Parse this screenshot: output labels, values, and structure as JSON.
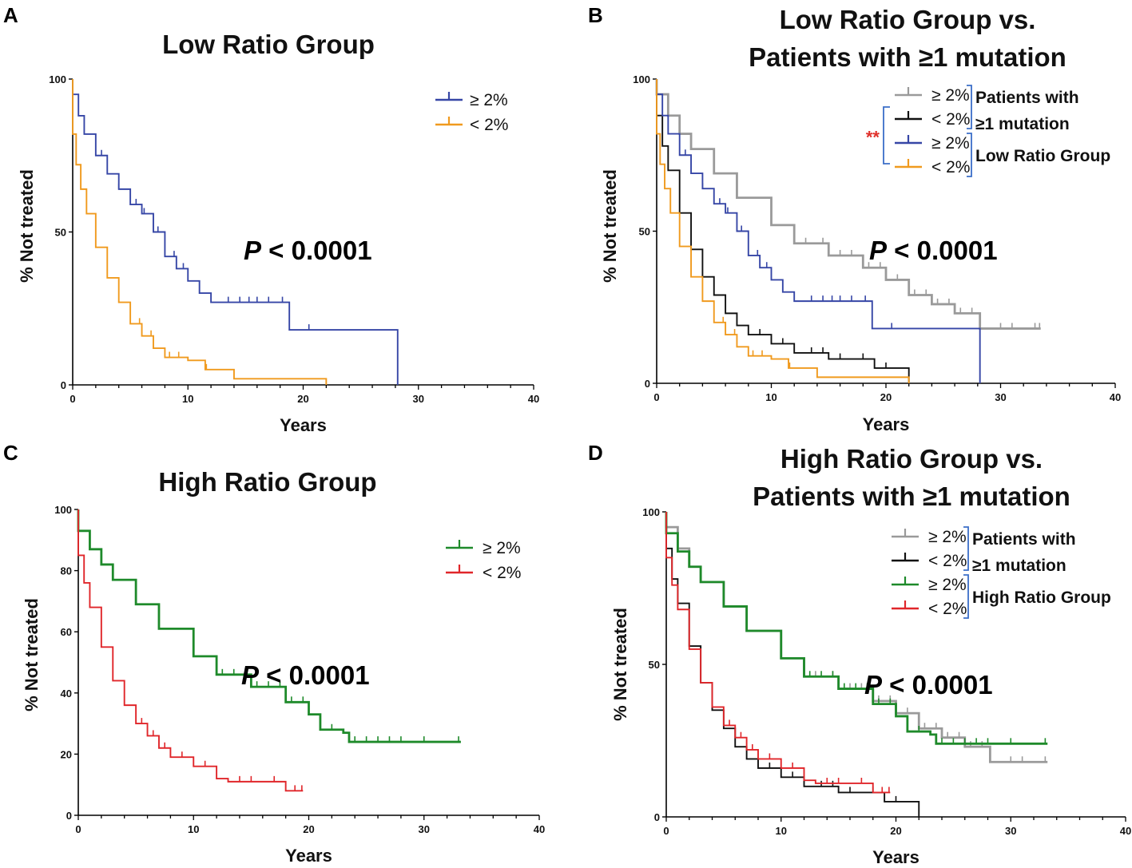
{
  "colors": {
    "blue": "#3646a6",
    "orange": "#f09a1e",
    "gray": "#9a9a9a",
    "black": "#111111",
    "green": "#1e8a2a",
    "red": "#e0262a",
    "bracket": "#3b6ec8",
    "star": "#e0302a"
  },
  "chart_data": [
    {
      "panel": "A",
      "type": "line",
      "subtype": "kaplan-meier",
      "title": "Low Ratio Group",
      "xlabel": "Years",
      "ylabel": "% Not treated",
      "xlim": [
        0,
        40
      ],
      "ylim": [
        0,
        100
      ],
      "xticks": [
        0,
        10,
        20,
        30,
        40
      ],
      "yticks": [
        0,
        50,
        100
      ],
      "pvalue_prefix": "P",
      "pvalue_rest": " < 0.0001",
      "legend": [
        {
          "label": "≥ 2%",
          "color": "blue"
        },
        {
          "label": "< 2%",
          "color": "orange"
        }
      ],
      "brackets": [],
      "series": [
        {
          "name": "≥ 2%",
          "color": "blue",
          "x": [
            0,
            0.5,
            1,
            2,
            3,
            4,
            5,
            6,
            7,
            8,
            9,
            10,
            11,
            12,
            15,
            18.8,
            20,
            28.2
          ],
          "y": [
            95,
            88,
            82,
            75,
            69,
            64,
            59,
            56,
            50,
            42,
            38,
            34,
            30,
            27,
            27,
            18,
            18,
            0
          ],
          "censor_x": [
            2.5,
            4,
            5.5,
            6.2,
            7.4,
            8.8,
            9.6,
            13.5,
            14.5,
            15.3,
            16,
            17,
            18.2,
            20.5
          ]
        },
        {
          "name": "< 2%",
          "color": "orange",
          "x": [
            0,
            0.3,
            0.7,
            1.2,
            2,
            3,
            4,
            5,
            6,
            7,
            8,
            10,
            11.5,
            14,
            22
          ],
          "y": [
            82,
            72,
            64,
            56,
            45,
            35,
            27,
            20,
            16,
            12,
            9,
            8,
            5,
            2,
            0
          ],
          "censor_x": [
            5.8,
            6.8,
            8.4,
            9.2,
            11.6
          ]
        }
      ]
    },
    {
      "panel": "B",
      "type": "line",
      "subtype": "kaplan-meier",
      "title": "Low Ratio Group vs.",
      "title2": "Patients with ≥1 mutation",
      "xlabel": "Years",
      "ylabel": "% Not treated",
      "xlim": [
        0,
        40
      ],
      "ylim": [
        0,
        100
      ],
      "xticks": [
        0,
        10,
        20,
        30,
        40
      ],
      "yticks": [
        0,
        50,
        100
      ],
      "pvalue_prefix": "P",
      "pvalue_rest": " < 0.0001",
      "legend": [
        {
          "label": "≥ 2%",
          "color": "gray"
        },
        {
          "label": "< 2%",
          "color": "black"
        },
        {
          "label": "≥ 2%",
          "color": "blue"
        },
        {
          "label": "< 2%",
          "color": "orange"
        }
      ],
      "brackets": [
        {
          "label": "Patients with",
          "label2": "≥1 mutation"
        },
        {
          "label": "Low Ratio Group"
        }
      ],
      "significance": "**",
      "series": [
        {
          "name": "≥ 2%",
          "color": "gray",
          "x": [
            0,
            1,
            2,
            3,
            5,
            7,
            10,
            12,
            15,
            18,
            20,
            22,
            24,
            26,
            28,
            28.2,
            33.5
          ],
          "y": [
            95,
            88,
            82,
            77,
            69,
            61,
            52,
            46,
            42,
            38,
            34,
            29,
            26,
            23,
            23,
            18,
            18
          ],
          "censor_x": [
            13,
            14.5,
            16,
            17,
            18.5,
            19.5,
            21,
            22.5,
            23.5,
            24.5,
            25.5,
            26.5,
            27.5,
            30,
            31,
            33,
            33.4
          ]
        },
        {
          "name": "< 2%",
          "color": "black",
          "x": [
            0,
            0.5,
            1,
            2,
            3,
            4,
            5,
            6,
            7,
            8,
            10,
            12,
            15,
            19,
            22
          ],
          "y": [
            88,
            78,
            70,
            56,
            44,
            35,
            29,
            23,
            19,
            16,
            13,
            10,
            8,
            5,
            0
          ],
          "censor_x": [
            9,
            11,
            13.5,
            14.5,
            16,
            18,
            20
          ]
        },
        {
          "name": "≥ 2%",
          "color": "blue",
          "x": [
            0,
            0.5,
            1,
            2,
            3,
            4,
            5,
            6,
            7,
            8,
            9,
            10,
            11,
            12,
            15,
            18.8,
            20,
            28.2
          ],
          "y": [
            95,
            88,
            82,
            75,
            69,
            64,
            59,
            56,
            50,
            42,
            38,
            34,
            30,
            27,
            27,
            18,
            18,
            0
          ],
          "censor_x": [
            2.5,
            4,
            5.5,
            6.2,
            7.4,
            8.8,
            9.6,
            13.5,
            14.5,
            15.3,
            16,
            17,
            18.2,
            20.5
          ]
        },
        {
          "name": "< 2%",
          "color": "orange",
          "x": [
            0,
            0.3,
            0.7,
            1.2,
            2,
            3,
            4,
            5,
            6,
            7,
            8,
            10,
            11.5,
            14,
            22
          ],
          "y": [
            82,
            72,
            64,
            56,
            45,
            35,
            27,
            20,
            16,
            12,
            9,
            8,
            5,
            2,
            0
          ],
          "censor_x": [
            5.8,
            6.8,
            8.4,
            9.2,
            11.6
          ]
        }
      ]
    },
    {
      "panel": "C",
      "type": "line",
      "subtype": "kaplan-meier",
      "title": "High Ratio Group",
      "xlabel": "Years",
      "ylabel": "% Not treated",
      "xlim": [
        0,
        40
      ],
      "ylim": [
        0,
        100
      ],
      "xticks": [
        0,
        10,
        20,
        30,
        40
      ],
      "yticks": [
        0,
        20,
        40,
        60,
        80,
        100
      ],
      "pvalue_prefix": "P",
      "pvalue_rest": " < 0.0001",
      "legend": [
        {
          "label": "≥ 2%",
          "color": "green"
        },
        {
          "label": "< 2%",
          "color": "red"
        }
      ],
      "brackets": [],
      "series": [
        {
          "name": "≥ 2%",
          "color": "green",
          "x": [
            0,
            1,
            2,
            3,
            5,
            7,
            10,
            12,
            15,
            18,
            20,
            21,
            23,
            23.5,
            33.2
          ],
          "y": [
            93,
            87,
            82,
            77,
            69,
            61,
            52,
            46,
            42,
            37,
            33,
            28,
            27,
            24,
            24
          ],
          "censor_x": [
            12.5,
            13.5,
            14.5,
            15.5,
            16.5,
            17.5,
            18.5,
            19.5,
            22,
            24,
            25,
            26,
            27,
            28,
            30,
            33
          ]
        },
        {
          "name": "< 2%",
          "color": "red",
          "x": [
            0,
            0.5,
            1,
            2,
            3,
            4,
            5,
            6,
            7,
            8,
            10,
            12,
            13,
            18,
            19.5
          ],
          "y": [
            85,
            76,
            68,
            55,
            44,
            36,
            30,
            26,
            22,
            19,
            16,
            12,
            11,
            8,
            8
          ],
          "censor_x": [
            5.5,
            6.5,
            7.5,
            9,
            11,
            14,
            15,
            17,
            18.8,
            19.4
          ]
        }
      ]
    },
    {
      "panel": "D",
      "type": "line",
      "subtype": "kaplan-meier",
      "title": "High Ratio Group vs.",
      "title2": "Patients with ≥1 mutation",
      "xlabel": "Years",
      "ylabel": "% Not treated",
      "xlim": [
        0,
        40
      ],
      "ylim": [
        0,
        100
      ],
      "xticks": [
        0,
        10,
        20,
        30,
        40
      ],
      "yticks": [
        0,
        50,
        100
      ],
      "pvalue_prefix": "P",
      "pvalue_rest": " < 0.0001",
      "legend": [
        {
          "label": "≥ 2%",
          "color": "gray"
        },
        {
          "label": "< 2%",
          "color": "black"
        },
        {
          "label": "≥ 2%",
          "color": "green"
        },
        {
          "label": "< 2%",
          "color": "red"
        }
      ],
      "brackets": [
        {
          "label": "Patients with",
          "label2": "≥1 mutation"
        },
        {
          "label": "High Ratio Group"
        }
      ],
      "series": [
        {
          "name": "≥ 2%",
          "color": "gray",
          "x": [
            0,
            1,
            2,
            3,
            5,
            7,
            10,
            12,
            15,
            18,
            20,
            22,
            24,
            26,
            28,
            28.2,
            33.2
          ],
          "y": [
            95,
            88,
            82,
            77,
            69,
            61,
            52,
            46,
            42,
            38,
            34,
            29,
            26,
            23,
            23,
            18,
            18
          ],
          "censor_x": [
            13,
            14.5,
            16,
            17,
            18.5,
            19.5,
            21,
            22.5,
            23.5,
            24.5,
            25.5,
            26.5,
            27.5,
            30,
            31,
            33
          ]
        },
        {
          "name": "< 2%",
          "color": "black",
          "x": [
            0,
            0.5,
            1,
            2,
            3,
            4,
            5,
            6,
            7,
            8,
            10,
            12,
            15,
            19,
            22
          ],
          "y": [
            88,
            78,
            70,
            56,
            44,
            35,
            29,
            23,
            19,
            16,
            13,
            10,
            8,
            5,
            0
          ],
          "censor_x": [
            9,
            11,
            13.5,
            14.5,
            16,
            18,
            20
          ]
        },
        {
          "name": "≥ 2%",
          "color": "green",
          "x": [
            0,
            1,
            2,
            3,
            5,
            7,
            10,
            12,
            15,
            18,
            20,
            21,
            23,
            23.5,
            33.2
          ],
          "y": [
            93,
            87,
            82,
            77,
            69,
            61,
            52,
            46,
            42,
            37,
            33,
            28,
            27,
            24,
            24
          ],
          "censor_x": [
            12.5,
            13.5,
            14.5,
            15.5,
            16.5,
            17.5,
            18.5,
            19.5,
            22,
            24,
            25,
            26,
            27,
            28,
            30,
            33
          ]
        },
        {
          "name": "< 2%",
          "color": "red",
          "x": [
            0,
            0.5,
            1,
            2,
            3,
            4,
            5,
            6,
            7,
            8,
            10,
            12,
            13,
            18,
            19.5
          ],
          "y": [
            85,
            76,
            68,
            55,
            44,
            36,
            30,
            26,
            22,
            19,
            16,
            12,
            11,
            8,
            8
          ],
          "censor_x": [
            5.5,
            6.5,
            7.5,
            9,
            11,
            14,
            15,
            17,
            18.8,
            19.4
          ]
        }
      ]
    }
  ]
}
